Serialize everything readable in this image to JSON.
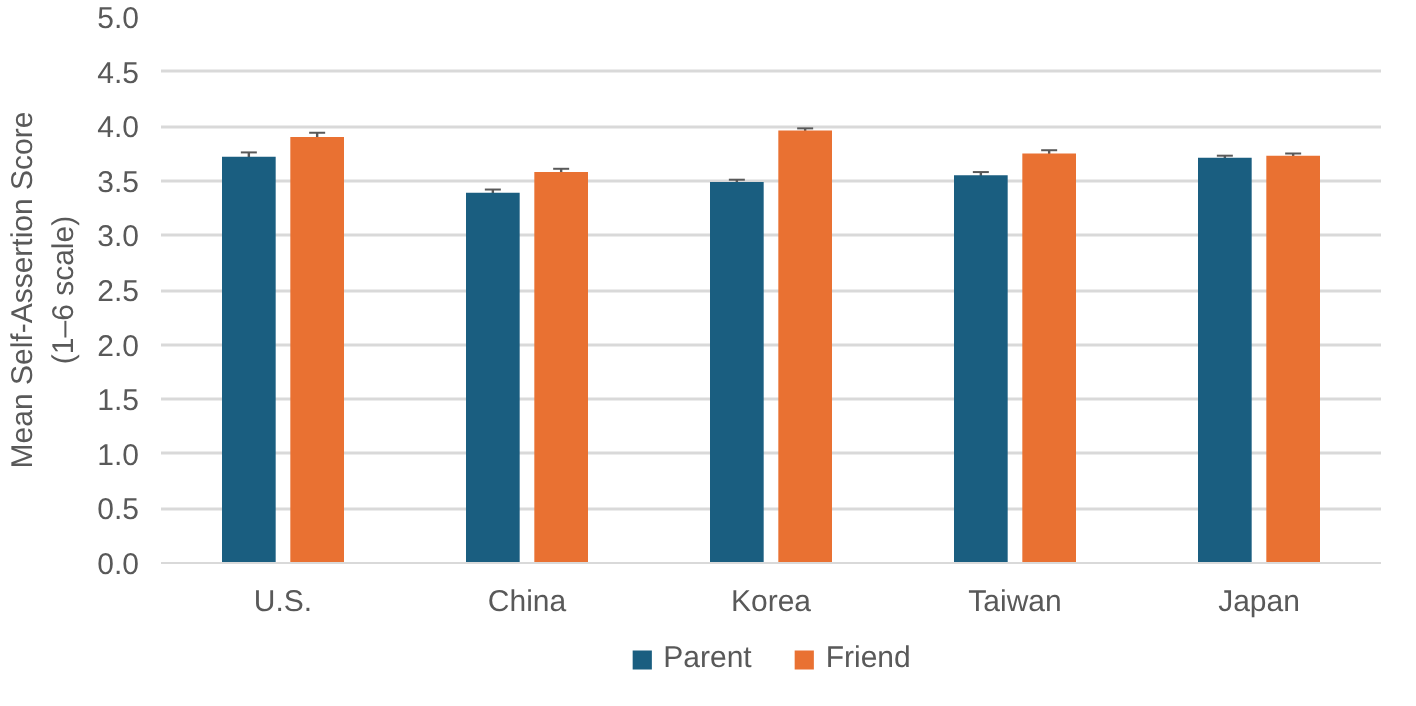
{
  "chart_data": {
    "type": "bar",
    "ylabel": "Mean Self-Assertion Score\n(1–6 scale)",
    "categories": [
      "U.S.",
      "China",
      "Korea",
      "Taiwan",
      "Japan"
    ],
    "series": [
      {
        "name": "Parent",
        "color": "#1a5e80",
        "values": [
          3.72,
          3.39,
          3.49,
          3.55,
          3.71
        ],
        "errors": [
          0.04,
          0.03,
          0.02,
          0.03,
          0.02
        ]
      },
      {
        "name": "Friend",
        "color": "#e97132",
        "values": [
          3.9,
          3.58,
          3.96,
          3.75,
          3.73
        ],
        "errors": [
          0.04,
          0.03,
          0.02,
          0.03,
          0.02
        ]
      }
    ],
    "ylim": [
      0,
      5
    ],
    "yticks": [
      {
        "value": 0,
        "label": "0.0"
      },
      {
        "value": 0.5,
        "label": "0.5"
      },
      {
        "value": 1,
        "label": "1.0"
      },
      {
        "value": 1.5,
        "label": "1.5"
      },
      {
        "value": 2,
        "label": "2.0"
      },
      {
        "value": 2.5,
        "label": "2.5"
      },
      {
        "value": 3,
        "label": "3.0"
      },
      {
        "value": 3.5,
        "label": "3.5"
      },
      {
        "value": 4,
        "label": "4.0"
      },
      {
        "value": 4.5,
        "label": "4.5"
      },
      {
        "value": 5,
        "label": "5.0"
      }
    ],
    "grid": "y",
    "legend": "bottom"
  }
}
